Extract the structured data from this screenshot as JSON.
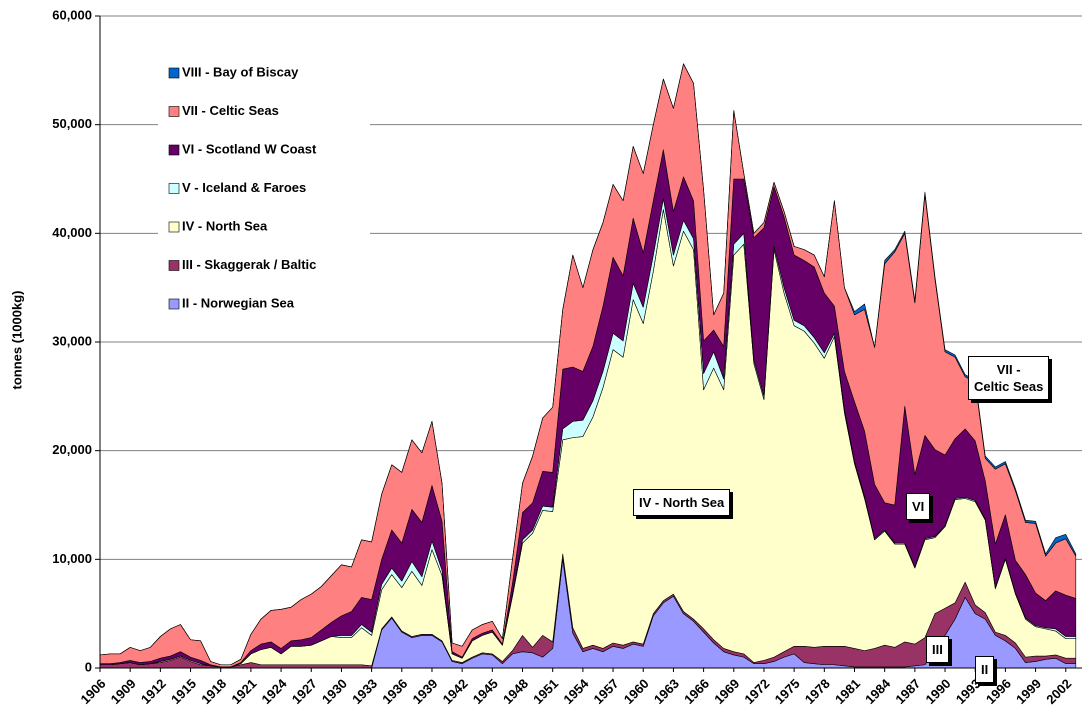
{
  "chart_data": {
    "type": "stacked-area",
    "y_label": "tonnes (1000kg)",
    "categories": [
      "1906",
      null,
      null,
      "1909",
      null,
      null,
      "1912",
      null,
      null,
      "1915",
      null,
      null,
      "1918",
      null,
      null,
      "1921",
      null,
      null,
      "1924",
      null,
      null,
      "1927",
      null,
      null,
      "1930",
      null,
      null,
      "1933",
      null,
      null,
      "1936",
      null,
      null,
      "1939",
      null,
      null,
      "1942",
      null,
      null,
      "1945",
      null,
      null,
      "1948",
      null,
      null,
      "1951",
      null,
      null,
      "1954",
      null,
      null,
      "1957",
      null,
      null,
      "1960",
      null,
      null,
      "1963",
      null,
      null,
      "1966",
      null,
      null,
      "1969",
      null,
      null,
      "1972",
      null,
      null,
      "1975",
      null,
      null,
      "1978",
      null,
      null,
      "1981",
      null,
      null,
      "1984",
      null,
      null,
      "1987",
      null,
      null,
      "1990",
      null,
      null,
      "1993",
      null,
      null,
      "1996",
      null,
      null,
      "1999",
      null,
      null,
      "2002",
      null
    ],
    "ylim": [
      0,
      60000
    ],
    "yticks": [
      0,
      {
        "value": 10000,
        "label": "10,000"
      },
      {
        "value": 20000,
        "label": "20,000"
      },
      {
        "value": 30000,
        "label": "30,000"
      },
      {
        "value": 40000,
        "label": "40,000"
      },
      {
        "value": 50000,
        "label": "50,000"
      },
      {
        "value": 60000,
        "label": "60,000"
      }
    ],
    "grid": true,
    "legend": "upper-left",
    "series": [
      {
        "name": "II - Norwegian Sea",
        "color": "#9999ff",
        "values": [
          0,
          0,
          0,
          0,
          0,
          0,
          0,
          0,
          0,
          0,
          0,
          0,
          0,
          0,
          0,
          0,
          0,
          0,
          0,
          0,
          0,
          0,
          0,
          0,
          0,
          0,
          0,
          0,
          3500,
          4600,
          3300,
          2800,
          3000,
          3000,
          2400,
          600,
          400,
          900,
          1300,
          1200,
          400,
          1300,
          1500,
          1400,
          1000,
          1800,
          10000,
          3200,
          1500,
          1800,
          1500,
          2000,
          1800,
          2200,
          2000,
          4800,
          6000,
          6600,
          5000,
          4300,
          3300,
          2300,
          1500,
          1200,
          1000,
          400,
          400,
          600,
          1000,
          1300,
          500,
          400,
          300,
          300,
          200,
          100,
          100,
          100,
          100,
          100,
          100,
          200,
          300,
          1500,
          3000,
          4500,
          6500,
          5000,
          4500,
          3000,
          2500,
          1800,
          500,
          600,
          800,
          900,
          400,
          400
        ]
      },
      {
        "name": "III - Skaggerak / Baltic",
        "color": "#993366",
        "values": [
          300,
          300,
          400,
          500,
          300,
          400,
          500,
          700,
          1000,
          600,
          300,
          200,
          100,
          100,
          300,
          500,
          300,
          300,
          300,
          300,
          300,
          300,
          300,
          300,
          300,
          300,
          300,
          200,
          100,
          100,
          100,
          100,
          100,
          100,
          100,
          100,
          100,
          100,
          100,
          100,
          200,
          300,
          1500,
          500,
          2000,
          600,
          500,
          500,
          300,
          300,
          300,
          300,
          300,
          200,
          200,
          200,
          200,
          200,
          200,
          200,
          300,
          300,
          300,
          300,
          300,
          100,
          300,
          400,
          500,
          700,
          1500,
          1500,
          1700,
          1700,
          1800,
          1700,
          1500,
          1700,
          2000,
          1800,
          2300,
          2000,
          2500,
          3500,
          2500,
          1500,
          1400,
          800,
          600,
          300,
          500,
          500,
          500,
          500,
          300,
          300,
          500,
          500
        ]
      },
      {
        "name": "IV - North Sea",
        "color": "#ffffcc",
        "values": [
          0,
          0,
          0,
          0,
          0,
          0,
          100,
          100,
          100,
          100,
          100,
          0,
          0,
          0,
          100,
          800,
          1400,
          1600,
          1000,
          1700,
          1700,
          1800,
          2200,
          2600,
          2500,
          2500,
          3400,
          2800,
          3600,
          3900,
          4000,
          6000,
          4500,
          7800,
          6000,
          600,
          400,
          1500,
          1600,
          2000,
          1500,
          5000,
          8500,
          10500,
          11500,
          12000,
          10500,
          17500,
          19500,
          21000,
          24000,
          27000,
          26500,
          31500,
          29500,
          31500,
          36000,
          30200,
          35000,
          34000,
          22000,
          25000,
          23800,
          36500,
          37700,
          27500,
          24000,
          37500,
          33000,
          29500,
          29000,
          28000,
          26500,
          28500,
          21500,
          17000,
          14000,
          10000,
          10500,
          9500,
          9000,
          7000,
          9000,
          7000,
          7500,
          9500,
          7700,
          9500,
          8500,
          4000,
          7000,
          4500,
          3500,
          2700,
          2500,
          2200,
          1800,
          1800
        ]
      },
      {
        "name": "V - Iceland & Faroes",
        "color": "#ccffff",
        "values": [
          0,
          0,
          0,
          0,
          0,
          0,
          0,
          0,
          0,
          0,
          0,
          0,
          0,
          0,
          0,
          0,
          0,
          0,
          0,
          0,
          0,
          0,
          0,
          0,
          200,
          200,
          300,
          300,
          500,
          600,
          600,
          900,
          800,
          800,
          500,
          0,
          0,
          0,
          0,
          0,
          0,
          200,
          300,
          300,
          400,
          400,
          1000,
          1500,
          1500,
          1500,
          1500,
          1500,
          1500,
          1500,
          1500,
          1500,
          1000,
          1000,
          1000,
          1000,
          1500,
          1500,
          1000,
          1000,
          1000,
          300,
          300,
          300,
          500,
          500,
          500,
          500,
          500,
          300,
          300,
          200,
          200,
          100,
          100,
          100,
          100,
          100,
          100,
          100,
          100,
          100,
          100,
          100,
          100,
          100,
          100,
          100,
          100,
          100,
          100,
          200,
          200,
          200
        ]
      },
      {
        "name": "VI - Scotland W Coast",
        "color": "#660066",
        "values": [
          100,
          100,
          100,
          200,
          200,
          200,
          300,
          300,
          400,
          300,
          300,
          100,
          0,
          0,
          100,
          300,
          500,
          500,
          500,
          500,
          600,
          700,
          1000,
          1300,
          1800,
          2200,
          2500,
          3000,
          2300,
          3500,
          3500,
          4800,
          5000,
          5100,
          4500,
          200,
          100,
          200,
          200,
          200,
          100,
          1000,
          2500,
          2500,
          3200,
          3200,
          5500,
          5000,
          4500,
          5000,
          6000,
          7000,
          6000,
          6000,
          5000,
          5000,
          4500,
          4000,
          4000,
          3500,
          3000,
          2000,
          3000,
          6000,
          5000,
          11300,
          15500,
          5500,
          6500,
          6000,
          6000,
          6500,
          5500,
          2500,
          3500,
          5500,
          6000,
          5000,
          2500,
          3500,
          12600,
          8500,
          9500,
          8000,
          6500,
          5500,
          6300,
          5500,
          3500,
          4000,
          4000,
          3000,
          4000,
          3000,
          2500,
          3500,
          3800,
          3500
        ]
      },
      {
        "name": "VII - Celtic Seas",
        "color": "#ff8080",
        "values": [
          800,
          900,
          800,
          1200,
          1100,
          1300,
          2000,
          2500,
          2500,
          1600,
          1800,
          300,
          200,
          200,
          300,
          1500,
          2300,
          2900,
          3600,
          3100,
          3700,
          4000,
          4000,
          4300,
          4700,
          4100,
          5300,
          5300,
          6000,
          6000,
          6500,
          6400,
          6400,
          5900,
          3500,
          800,
          1000,
          800,
          800,
          800,
          500,
          2200,
          2700,
          4300,
          4900,
          6000,
          5500,
          10300,
          7700,
          8900,
          7700,
          6700,
          6900,
          6600,
          7300,
          7000,
          6500,
          9500,
          10400,
          10800,
          13900,
          1400,
          4900,
          6300,
          500,
          400,
          500,
          400,
          500,
          800,
          1000,
          1100,
          1500,
          9700,
          7700,
          8000,
          11200,
          12600,
          22000,
          23300,
          15900,
          15800,
          22200,
          15700,
          9500,
          7500,
          4800,
          5400,
          2100,
          6900,
          4700,
          6400,
          4800,
          6400,
          4100,
          4400,
          5200,
          3900
        ]
      },
      {
        "name": "VIII - Bay of Biscay",
        "color": "#0066cc",
        "values": [
          0,
          0,
          0,
          0,
          0,
          0,
          0,
          0,
          0,
          0,
          0,
          0,
          0,
          0,
          0,
          0,
          0,
          0,
          0,
          0,
          0,
          0,
          0,
          0,
          0,
          0,
          0,
          0,
          0,
          0,
          0,
          0,
          0,
          0,
          0,
          0,
          0,
          0,
          0,
          0,
          0,
          0,
          0,
          0,
          0,
          0,
          0,
          0,
          0,
          0,
          0,
          0,
          0,
          0,
          0,
          0,
          0,
          0,
          0,
          0,
          0,
          0,
          0,
          0,
          0,
          0,
          0,
          0,
          0,
          0,
          0,
          0,
          0,
          0,
          0,
          300,
          500,
          0,
          300,
          200,
          200,
          200,
          200,
          200,
          200,
          200,
          200,
          200,
          200,
          200,
          200,
          200,
          200,
          200,
          200,
          500,
          400,
          200
        ]
      }
    ],
    "annotations": [
      "IV - North Sea",
      "VI",
      "VII -\nCeltic Seas",
      "III",
      "II"
    ]
  }
}
